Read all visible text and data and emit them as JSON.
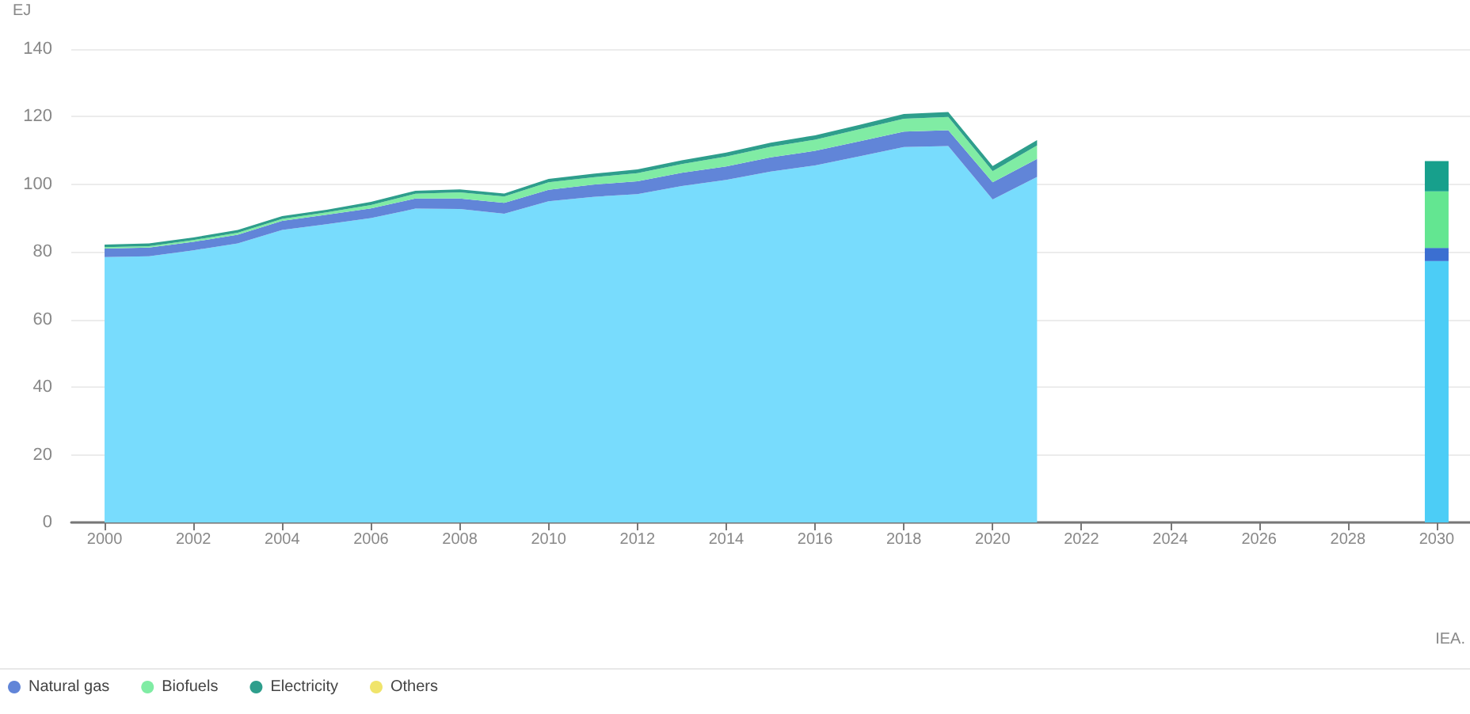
{
  "chart_data": {
    "type": "area",
    "ylabel": "EJ",
    "annotations": [
      "IEA."
    ],
    "x": [
      2000,
      2001,
      2002,
      2003,
      2004,
      2005,
      2006,
      2007,
      2008,
      2009,
      2010,
      2011,
      2012,
      2013,
      2014,
      2015,
      2016,
      2017,
      2018,
      2019,
      2020,
      2021,
      2030
    ],
    "series": [
      {
        "color": "#78dcfd",
        "values": [
          78.5,
          78.7,
          80.5,
          82.5,
          86.5,
          88.2,
          90.0,
          92.8,
          92.7,
          91.3,
          95.0,
          96.3,
          97.1,
          99.5,
          101.3,
          103.8,
          105.6,
          108.3,
          111.0,
          111.3,
          95.5,
          102.2,
          null
        ]
      },
      {
        "name": "Natural gas",
        "color": "#6185d8",
        "values": [
          2.5,
          2.6,
          2.5,
          2.6,
          2.7,
          2.8,
          2.9,
          3.0,
          3.1,
          3.2,
          3.4,
          3.6,
          3.8,
          3.9,
          4.0,
          4.2,
          4.3,
          4.4,
          4.6,
          4.7,
          5.1,
          5.3,
          null
        ]
      },
      {
        "name": "Biofuels",
        "color": "#80eca4",
        "values": [
          0.4,
          0.4,
          0.5,
          0.6,
          0.6,
          0.7,
          1.0,
          1.4,
          1.8,
          1.9,
          2.2,
          2.2,
          2.4,
          2.6,
          2.9,
          3.1,
          3.3,
          3.6,
          3.8,
          3.9,
          3.3,
          4.0,
          null
        ]
      },
      {
        "name": "Electricity",
        "color": "#2e9e8c",
        "values": [
          0.8,
          0.8,
          0.8,
          0.8,
          0.8,
          0.8,
          0.9,
          0.9,
          0.9,
          0.9,
          1.0,
          1.0,
          1.1,
          1.1,
          1.2,
          1.2,
          1.3,
          1.3,
          1.4,
          1.5,
          1.5,
          1.6,
          null
        ]
      },
      {
        "name": "Others",
        "color": "#f0e46b",
        "values": [
          null,
          null,
          null,
          null,
          null,
          null,
          null,
          null,
          null,
          null,
          null,
          null,
          null,
          null,
          null,
          null,
          null,
          null,
          null,
          null,
          null,
          null,
          null
        ]
      },
      {
        "type": "bar",
        "color": "#4ccdf6",
        "values": [
          null,
          null,
          null,
          null,
          null,
          null,
          null,
          null,
          null,
          null,
          null,
          null,
          null,
          null,
          null,
          null,
          null,
          null,
          null,
          null,
          null,
          null,
          77.3
        ]
      },
      {
        "type": "bar",
        "color": "#3b6fd1",
        "values": [
          null,
          null,
          null,
          null,
          null,
          null,
          null,
          null,
          null,
          null,
          null,
          null,
          null,
          null,
          null,
          null,
          null,
          null,
          null,
          null,
          null,
          null,
          3.9
        ]
      },
      {
        "type": "bar",
        "color": "#63e691",
        "values": [
          null,
          null,
          null,
          null,
          null,
          null,
          null,
          null,
          null,
          null,
          null,
          null,
          null,
          null,
          null,
          null,
          null,
          null,
          null,
          null,
          null,
          null,
          16.7
        ]
      },
      {
        "type": "bar",
        "color": "#17a08c",
        "values": [
          null,
          null,
          null,
          null,
          null,
          null,
          null,
          null,
          null,
          null,
          null,
          null,
          null,
          null,
          null,
          null,
          null,
          null,
          null,
          null,
          null,
          null,
          9.0
        ]
      }
    ],
    "stacked": true,
    "xlim": [
      1999.25,
      2030.75
    ],
    "xticks": [
      2000,
      2002,
      2004,
      2006,
      2008,
      2010,
      2012,
      2014,
      2016,
      2018,
      2020,
      2022,
      2024,
      2026,
      2028,
      2030
    ],
    "ylim": [
      0,
      140
    ],
    "yticks": [
      0,
      20,
      40,
      60,
      80,
      100,
      120,
      140
    ],
    "grid": "y",
    "legend": "bottom left"
  }
}
